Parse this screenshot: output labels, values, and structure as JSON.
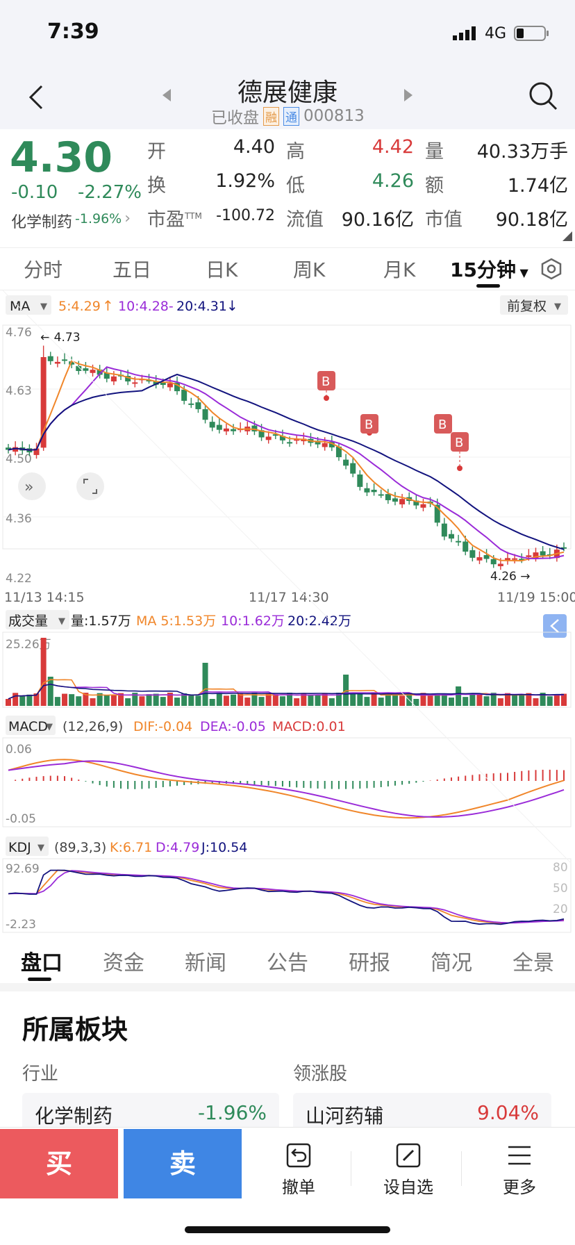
{
  "status": {
    "time": "7:39",
    "network": "4G"
  },
  "header": {
    "title": "德展健康",
    "state": "已收盘",
    "badge_rong": "融",
    "badge_tong": "通",
    "code": "000813"
  },
  "quote": {
    "price": "4.30",
    "change": "-0.10",
    "change_pct": "-2.27%",
    "sector_name": "化学制药",
    "sector_pct": "-1.96%",
    "open_label": "开",
    "open": "4.40",
    "high_label": "高",
    "high": "4.42",
    "vol_label": "量",
    "vol": "40.33万手",
    "turn_label": "换",
    "turn": "1.92%",
    "low_label": "低",
    "low": "4.26",
    "amt_label": "额",
    "amt": "1.74亿",
    "pe_label": "市盈",
    "pe_sup": "TTM",
    "pe": "-100.72",
    "float_label": "流值",
    "float": "90.16亿",
    "mcap_label": "市值",
    "mcap": "90.18亿"
  },
  "tabs": [
    "分时",
    "五日",
    "日K",
    "周K",
    "月K",
    "15分钟"
  ],
  "ma_legend": {
    "label": "MA",
    "ma5": "5:4.29",
    "ma10": "10:4.28-",
    "ma20": "20:4.31",
    "adjust": "前复权"
  },
  "price_axis": {
    "max": "4.76",
    "v1": "4.63",
    "v2": "4.50",
    "v3": "4.36",
    "min": "4.22"
  },
  "annotations": {
    "high_mark": "4.73",
    "low_mark": "4.26",
    "buy": "B"
  },
  "time_axis": [
    "11/13 14:15",
    "11/17 14:30",
    "11/19 15:00"
  ],
  "volume": {
    "label": "成交量",
    "cur": "量:1.57万",
    "ma5": "MA 5:1.53万",
    "ma10": "10:1.62万",
    "ma20": "20:2.42万",
    "max": "25.26万"
  },
  "macd": {
    "label": "MACD",
    "params": "(12,26,9)",
    "dif": "DIF:-0.04",
    "dea": "DEA:-0.05",
    "macd": "MACD:0.01",
    "max": "0.06",
    "min": "-0.05"
  },
  "kdj": {
    "label": "KDJ",
    "params": "(89,3,3)",
    "k": "K:6.71",
    "d": "D:4.79",
    "j": "J:10.54",
    "max": "92.69",
    "min": "-2.23",
    "l80": "80",
    "l50": "50",
    "l20": "20"
  },
  "bottom_tabs": [
    "盘口",
    "资金",
    "新闻",
    "公告",
    "研报",
    "简况",
    "全景"
  ],
  "section": {
    "title": "所属板块",
    "industry_label": "行业",
    "leader_label": "领涨股",
    "industry_name": "化学制药",
    "industry_pct": "-1.96%",
    "leader_name": "山河药辅",
    "leader_pct": "9.04%"
  },
  "toolbar": {
    "buy": "买",
    "sell": "卖",
    "cancel": "撤单",
    "watch": "设自选",
    "more": "更多"
  },
  "colors": {
    "up": "#d83a3a",
    "down": "#2f8a5a",
    "ma5": "#f0862a",
    "ma10": "#9a2bd8",
    "ma20": "#12137e",
    "buy_btn": "#ec5a5e",
    "sell_btn": "#3f86e4"
  }
}
